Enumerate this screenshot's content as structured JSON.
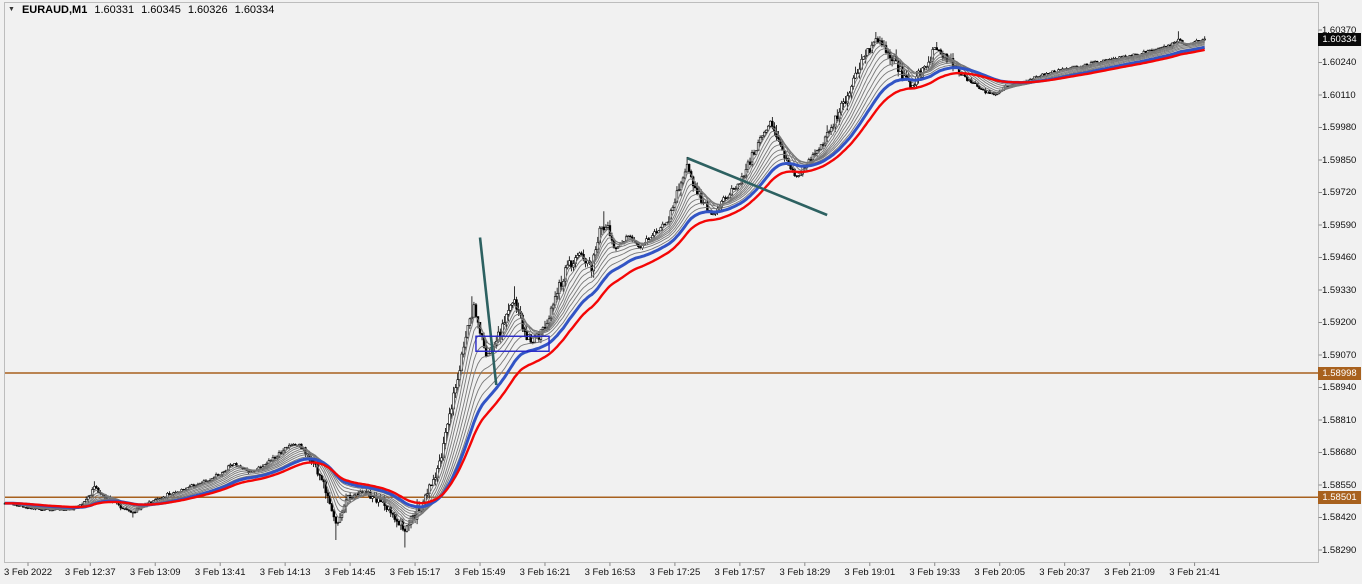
{
  "window": {
    "background": "#f1f1f1"
  },
  "symbol_info": {
    "dropdown_glyph": "▼",
    "symbol_period": "EURAUD,M1",
    "open": "1.60331",
    "high": "1.60345",
    "low": "1.60326",
    "close": "1.60334"
  },
  "price_axis": {
    "labels": [
      "1.60370",
      "1.60240",
      "1.60110",
      "1.59980",
      "1.59850",
      "1.59720",
      "1.59590",
      "1.59460",
      "1.59330",
      "1.59200",
      "1.59070",
      "1.58940",
      "1.58810",
      "1.58680",
      "1.58550",
      "1.58420",
      "1.58290"
    ],
    "current_tag": {
      "value": "1.60334",
      "price": 1.60334,
      "bg": "#0a0a0a",
      "fg": "#ffffff"
    }
  },
  "time_axis": {
    "labels": [
      "3 Feb 2022",
      "3 Feb 12:37",
      "3 Feb 13:09",
      "3 Feb 13:41",
      "3 Feb 14:13",
      "3 Feb 14:45",
      "3 Feb 15:17",
      "3 Feb 15:49",
      "3 Feb 16:21",
      "3 Feb 16:53",
      "3 Feb 17:25",
      "3 Feb 17:57",
      "3 Feb 18:29",
      "3 Feb 19:01",
      "3 Feb 19:33",
      "3 Feb 20:05",
      "3 Feb 20:37",
      "3 Feb 21:09",
      "3 Feb 21:41"
    ]
  },
  "chart_data": {
    "type": "candlestick",
    "symbol": "EURAUD",
    "timeframe": "M1",
    "title": "EURAUD,M1",
    "last_ohlc": {
      "open": 1.60331,
      "high": 1.60345,
      "low": 1.60326,
      "close": 1.60334
    },
    "y_range": {
      "top": 1.6037,
      "bottom": 1.5829,
      "tick_step": 0.0013
    },
    "grid": false,
    "session_start": "11:55",
    "session_end": "21:46",
    "price_path": [
      [
        "11:55",
        1.5848
      ],
      [
        "12:10",
        1.58455
      ],
      [
        "12:25",
        1.5845
      ],
      [
        "12:33",
        1.5847
      ],
      [
        "12:39",
        1.5854
      ],
      [
        "12:45",
        1.585
      ],
      [
        "12:52",
        1.58465
      ],
      [
        "12:58",
        1.5844
      ],
      [
        "13:06",
        1.5848
      ],
      [
        "13:15",
        1.5851
      ],
      [
        "13:25",
        1.5854
      ],
      [
        "13:33",
        1.5856
      ],
      [
        "13:40",
        1.5859
      ],
      [
        "13:48",
        1.58635
      ],
      [
        "13:56",
        1.586
      ],
      [
        "14:05",
        1.58645
      ],
      [
        "14:14",
        1.587
      ],
      [
        "14:20",
        1.58715
      ],
      [
        "14:26",
        1.5865
      ],
      [
        "14:32",
        1.5856
      ],
      [
        "14:36",
        1.5843
      ],
      [
        "14:39",
        1.5839
      ],
      [
        "14:44",
        1.585
      ],
      [
        "14:52",
        1.5852
      ],
      [
        "15:00",
        1.58485
      ],
      [
        "15:06",
        1.5844
      ],
      [
        "15:12",
        1.58365
      ],
      [
        "15:17",
        1.5843
      ],
      [
        "15:22",
        1.58505
      ],
      [
        "15:27",
        1.586
      ],
      [
        "15:31",
        1.58705
      ],
      [
        "15:36",
        1.589
      ],
      [
        "15:40",
        1.5906
      ],
      [
        "15:43",
        1.5918
      ],
      [
        "15:46",
        1.5927
      ],
      [
        "15:49",
        1.5916
      ],
      [
        "15:52",
        1.59065
      ],
      [
        "15:56",
        1.591
      ],
      [
        "16:00",
        1.5918
      ],
      [
        "16:06",
        1.5929
      ],
      [
        "16:10",
        1.5918
      ],
      [
        "16:14",
        1.5912
      ],
      [
        "16:18",
        1.5915
      ],
      [
        "16:22",
        1.592
      ],
      [
        "16:26",
        1.593
      ],
      [
        "16:32",
        1.5942
      ],
      [
        "16:38",
        1.5948
      ],
      [
        "16:44",
        1.5942
      ],
      [
        "16:48",
        1.5956
      ],
      [
        "16:52",
        1.5959
      ],
      [
        "16:56",
        1.5949
      ],
      [
        "17:02",
        1.5955
      ],
      [
        "17:08",
        1.595
      ],
      [
        "17:15",
        1.5956
      ],
      [
        "17:22",
        1.5962
      ],
      [
        "17:28",
        1.5976
      ],
      [
        "17:31",
        1.5983
      ],
      [
        "17:36",
        1.5972
      ],
      [
        "17:43",
        1.5963
      ],
      [
        "17:50",
        1.597
      ],
      [
        "17:57",
        1.5976
      ],
      [
        "18:05",
        1.599
      ],
      [
        "18:12",
        1.6
      ],
      [
        "18:18",
        1.5988
      ],
      [
        "18:25",
        1.5978
      ],
      [
        "18:32",
        1.5985
      ],
      [
        "18:40",
        1.5994
      ],
      [
        "18:48",
        1.6008
      ],
      [
        "18:56",
        1.6023
      ],
      [
        "19:04",
        1.6034
      ],
      [
        "19:10",
        1.6028
      ],
      [
        "19:16",
        1.6021
      ],
      [
        "19:22",
        1.6014
      ],
      [
        "19:28",
        1.6023
      ],
      [
        "19:34",
        1.603
      ],
      [
        "19:40",
        1.6025
      ],
      [
        "19:48",
        1.6018
      ],
      [
        "19:56",
        1.6013
      ],
      [
        "20:02",
        1.60115
      ],
      [
        "20:08",
        1.6014
      ],
      [
        "20:15",
        1.6016
      ],
      [
        "20:22",
        1.6018
      ],
      [
        "20:30",
        1.602
      ],
      [
        "20:38",
        1.60215
      ],
      [
        "20:46",
        1.60228
      ],
      [
        "20:55",
        1.60245
      ],
      [
        "21:04",
        1.60258
      ],
      [
        "21:12",
        1.6027
      ],
      [
        "21:20",
        1.60288
      ],
      [
        "21:28",
        1.60305
      ],
      [
        "21:33",
        1.6033
      ],
      [
        "21:37",
        1.60312
      ],
      [
        "21:41",
        1.60322
      ],
      [
        "21:46",
        1.60334
      ]
    ],
    "spikes": [
      {
        "t": "12:39",
        "high": 1.58565
      },
      {
        "t": "12:58",
        "low": 1.5842
      },
      {
        "t": "14:38",
        "low": 1.5833
      },
      {
        "t": "15:12",
        "low": 1.583
      },
      {
        "t": "15:45",
        "high": 1.59305
      },
      {
        "t": "16:06",
        "high": 1.59345
      },
      {
        "t": "16:50",
        "high": 1.59645
      },
      {
        "t": "17:31",
        "high": 1.59862
      },
      {
        "t": "18:13",
        "high": 1.60022
      },
      {
        "t": "19:04",
        "high": 1.60362
      },
      {
        "t": "19:34",
        "high": 1.60322
      },
      {
        "t": "21:33",
        "high": 1.60365
      }
    ],
    "high_vol_windows": [
      [
        "14:30",
        "16:55"
      ],
      [
        "18:40",
        "19:45"
      ]
    ],
    "candle_colors": {
      "up_fill": "#ffffff",
      "down_fill": "#000000",
      "outline": "#000000"
    },
    "moving_averages": {
      "gray_periods": [
        4,
        7,
        10,
        14,
        18,
        23,
        28,
        34
      ],
      "gray_color": "#787878",
      "blue": {
        "period": 40,
        "color": "#3254C5"
      },
      "red": {
        "period": 52,
        "color": "#F40606"
      }
    },
    "horizontal_lines": [
      {
        "price": 1.58998,
        "label": "1.58998",
        "color": "#A8611E"
      },
      {
        "price": 1.58501,
        "label": "1.58501",
        "color": "#A8611E"
      }
    ],
    "trend_lines": [
      {
        "from": [
          "15:49",
          1.5954
        ],
        "to": [
          "15:57",
          1.5895
        ],
        "color": "#2D6161"
      },
      {
        "from": [
          "17:31",
          1.59858
        ],
        "to": [
          "18:40",
          1.5963
        ],
        "color": "#2D6161"
      }
    ],
    "rectangle": {
      "from": [
        "15:47",
        1.59145
      ],
      "to": [
        "16:23",
        1.59085
      ],
      "color": "#2626C9"
    }
  }
}
